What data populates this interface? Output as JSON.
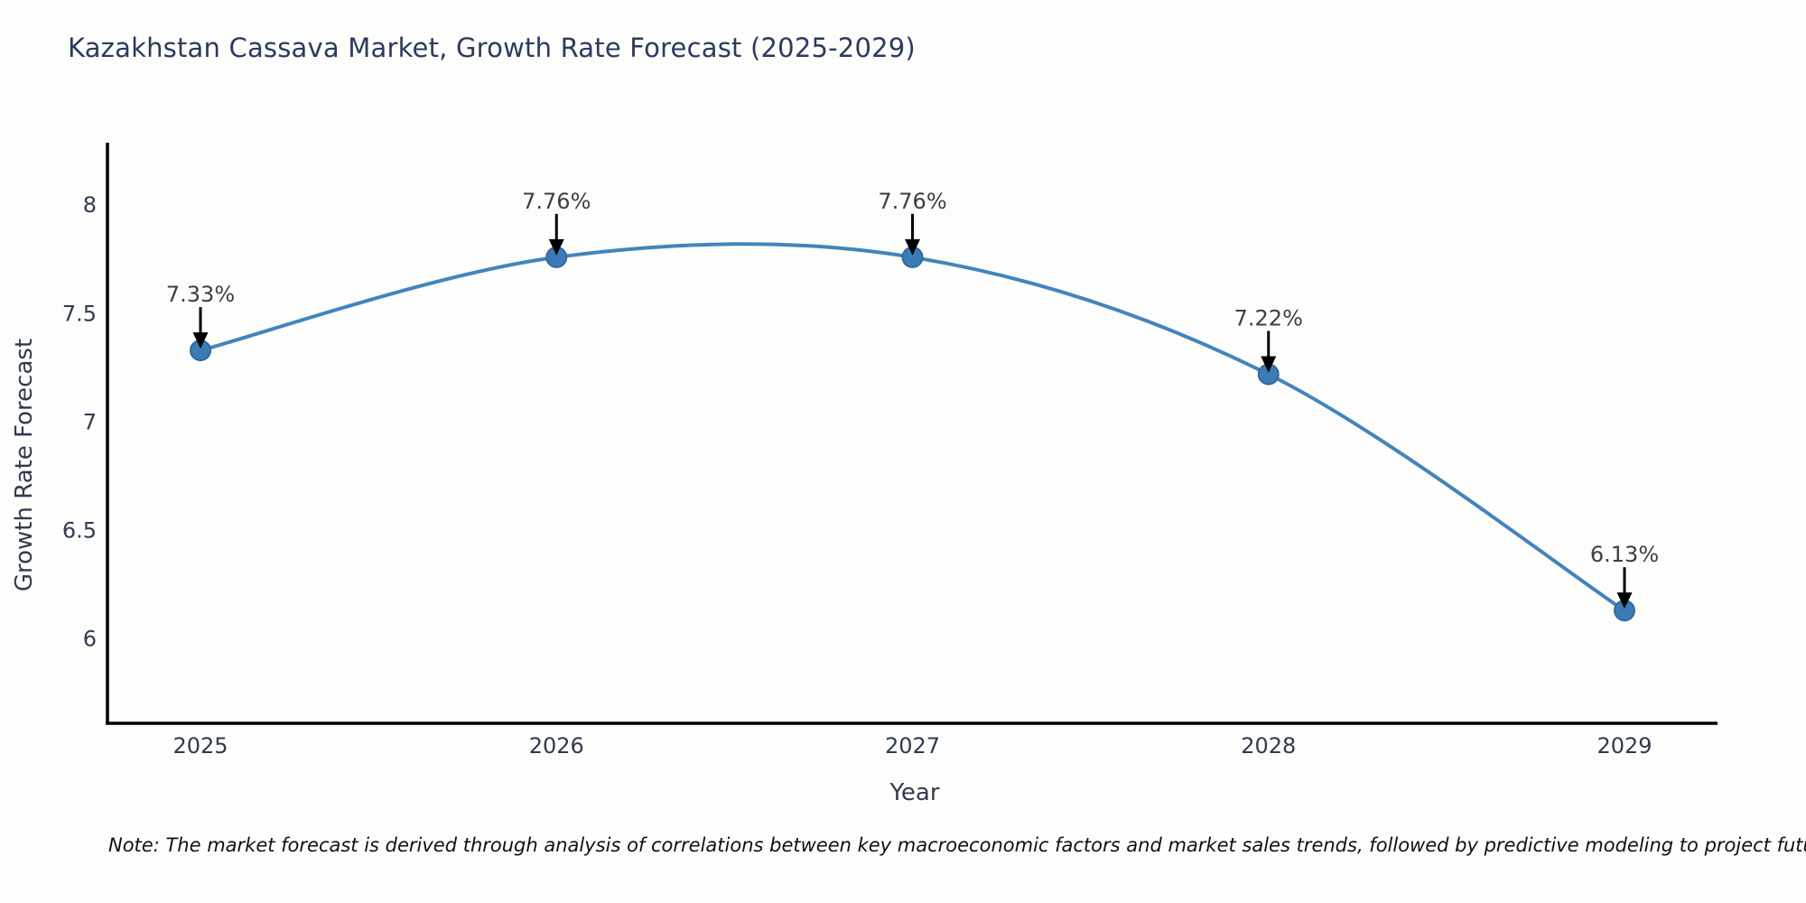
{
  "note": "Note: The market forecast is derived through analysis of correlations between key macroeconomic factors and market sales trends, followed by predictive modeling to project future sales",
  "chart_data": {
    "type": "line",
    "line_shape": "spline",
    "title": "Kazakhstan Cassava Market, Growth Rate Forecast (2025-2029)",
    "xlabel": "Year",
    "ylabel": "Growth Rate Forecast",
    "x": [
      "2025",
      "2026",
      "2027",
      "2028",
      "2029"
    ],
    "values": [
      7.33,
      7.76,
      7.76,
      7.22,
      6.13
    ],
    "point_labels": [
      "7.33%",
      "7.76%",
      "7.76%",
      "7.22%",
      "6.13%"
    ],
    "ytick_values": [
      6,
      6.5,
      7,
      7.5,
      8
    ],
    "ylim": [
      5.61,
      8.28
    ],
    "grid": false,
    "legend": false,
    "colors": {
      "line": "#4384bd",
      "marker": "#3c7cb6",
      "marker_edge": "#31699f",
      "axis_line": "#000000",
      "tick_text": "#2f3b4e",
      "title_text": "#2c3a5e",
      "annotation_text": "#3a3f46",
      "arrow": "#000000",
      "note_text": "#111111"
    }
  }
}
